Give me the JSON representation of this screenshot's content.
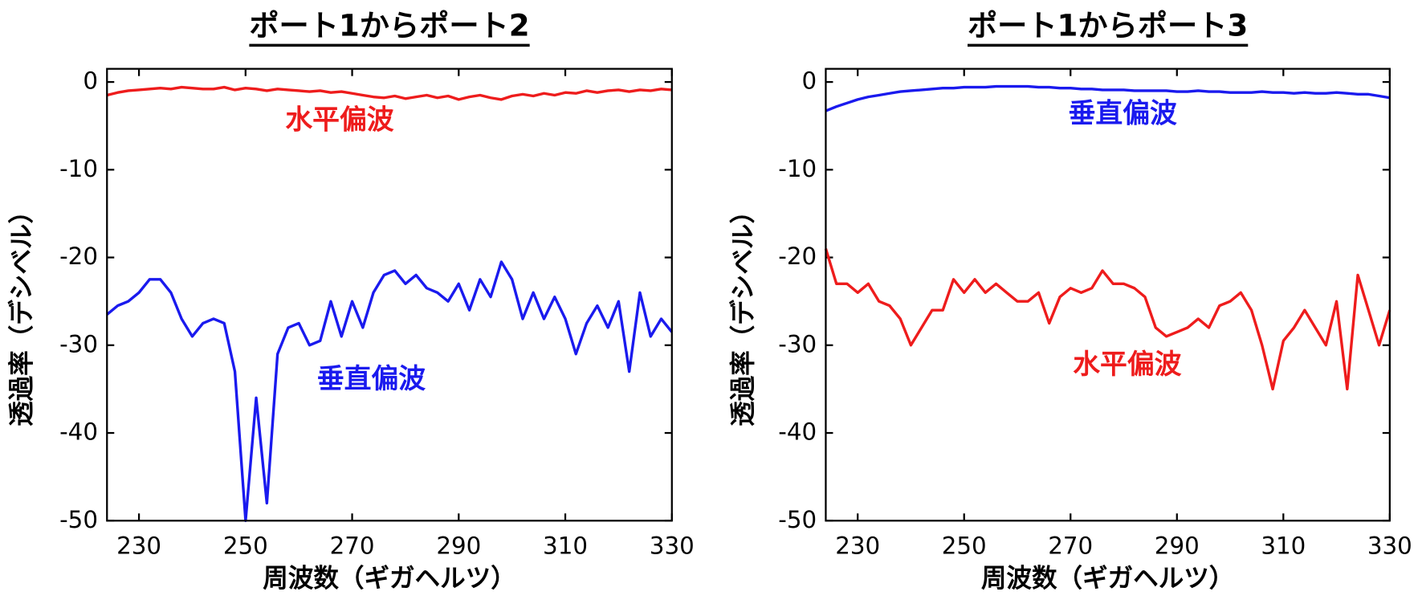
{
  "chart_data": [
    {
      "type": "line",
      "title": "ポート1からポート2",
      "xlabel": "周波数（ギガヘルツ）",
      "ylabel": "透過率（デシベル）",
      "x": [
        224,
        226,
        228,
        230,
        232,
        234,
        236,
        238,
        240,
        242,
        244,
        246,
        248,
        250,
        252,
        254,
        256,
        258,
        260,
        262,
        264,
        266,
        268,
        270,
        272,
        274,
        276,
        278,
        280,
        282,
        284,
        286,
        288,
        290,
        292,
        294,
        296,
        298,
        300,
        302,
        304,
        306,
        308,
        310,
        312,
        314,
        316,
        318,
        320,
        322,
        324,
        326,
        328,
        330
      ],
      "series": [
        {
          "name": "水平偏波",
          "color": "#ee1c1c",
          "values": [
            -1.5,
            -1.2,
            -1,
            -0.9,
            -0.8,
            -0.7,
            -0.8,
            -0.6,
            -0.7,
            -0.8,
            -0.8,
            -0.6,
            -0.9,
            -0.7,
            -0.8,
            -1,
            -0.8,
            -0.9,
            -1,
            -1.1,
            -1,
            -1.2,
            -1.1,
            -1.3,
            -1.5,
            -1.7,
            -1.8,
            -1.6,
            -1.9,
            -1.7,
            -1.5,
            -1.8,
            -1.6,
            -2,
            -1.7,
            -1.5,
            -1.8,
            -2,
            -1.6,
            -1.4,
            -1.6,
            -1.3,
            -1.5,
            -1.2,
            -1.3,
            -1,
            -1.2,
            -1,
            -0.9,
            -1.1,
            -0.9,
            -1,
            -0.8,
            -0.9
          ]
        },
        {
          "name": "垂直偏波",
          "color": "#1a1aee",
          "values": [
            -26.5,
            -25.5,
            -25,
            -24,
            -22.5,
            -22.5,
            -24,
            -27,
            -29,
            -27.5,
            -27,
            -27.5,
            -33,
            -50,
            -36,
            -48,
            -31,
            -28,
            -27.5,
            -30,
            -29.5,
            -25,
            -29,
            -25,
            -28,
            -24,
            -22,
            -21.5,
            -23,
            -22,
            -23.5,
            -24,
            -25,
            -23,
            -26,
            -22.5,
            -24.5,
            -20.5,
            -22.5,
            -27,
            -24,
            -27,
            -24.5,
            -27,
            -31,
            -27.5,
            -25.5,
            -28,
            -25,
            -33,
            -24,
            -29,
            -27,
            -28.5
          ]
        }
      ],
      "xlim": [
        224,
        330
      ],
      "ylim": [
        -50,
        1.5
      ],
      "xticks": [
        230,
        250,
        270,
        290,
        310,
        330
      ],
      "yticks": [
        0,
        -10,
        -20,
        -30,
        -40,
        -50
      ]
    },
    {
      "type": "line",
      "title": "ポート1からポート3",
      "xlabel": "周波数（ギガヘルツ）",
      "ylabel": "透過率（デシベル）",
      "x": [
        224,
        226,
        228,
        230,
        232,
        234,
        236,
        238,
        240,
        242,
        244,
        246,
        248,
        250,
        252,
        254,
        256,
        258,
        260,
        262,
        264,
        266,
        268,
        270,
        272,
        274,
        276,
        278,
        280,
        282,
        284,
        286,
        288,
        290,
        292,
        294,
        296,
        298,
        300,
        302,
        304,
        306,
        308,
        310,
        312,
        314,
        316,
        318,
        320,
        322,
        324,
        326,
        328,
        330
      ],
      "series": [
        {
          "name": "垂直偏波",
          "color": "#1a1aee",
          "values": [
            -3.3,
            -2.8,
            -2.4,
            -2,
            -1.7,
            -1.5,
            -1.3,
            -1.1,
            -1,
            -0.9,
            -0.8,
            -0.7,
            -0.7,
            -0.6,
            -0.6,
            -0.6,
            -0.5,
            -0.5,
            -0.5,
            -0.5,
            -0.6,
            -0.6,
            -0.7,
            -0.7,
            -0.8,
            -0.8,
            -0.9,
            -0.9,
            -0.9,
            -1,
            -1,
            -1,
            -1,
            -1.1,
            -1.1,
            -1,
            -1.1,
            -1.1,
            -1.2,
            -1.2,
            -1.2,
            -1.1,
            -1.2,
            -1.2,
            -1.3,
            -1.2,
            -1.3,
            -1.3,
            -1.2,
            -1.3,
            -1.4,
            -1.4,
            -1.6,
            -1.8
          ]
        },
        {
          "name": "水平偏波",
          "color": "#ee1c1c",
          "values": [
            -19,
            -23,
            -23,
            -24,
            -23,
            -25,
            -25.5,
            -27,
            -30,
            -28,
            -26,
            -26,
            -22.5,
            -24,
            -22.5,
            -24,
            -23,
            -24,
            -25,
            -25,
            -24,
            -27.5,
            -24.5,
            -23.5,
            -24,
            -23.5,
            -21.5,
            -23,
            -23,
            -23.5,
            -24.5,
            -28,
            -29,
            -28.5,
            -28,
            -27,
            -28,
            -25.5,
            -25,
            -24,
            -26,
            -30,
            -35,
            -29.5,
            -28,
            -26,
            -28,
            -30,
            -25,
            -35,
            -22,
            -26,
            -30,
            -26
          ]
        }
      ],
      "xlim": [
        224,
        330
      ],
      "ylim": [
        -50,
        1.5
      ],
      "xticks": [
        230,
        250,
        270,
        290,
        310,
        330
      ],
      "yticks": [
        0,
        -10,
        -20,
        -30,
        -40,
        -50
      ]
    }
  ]
}
